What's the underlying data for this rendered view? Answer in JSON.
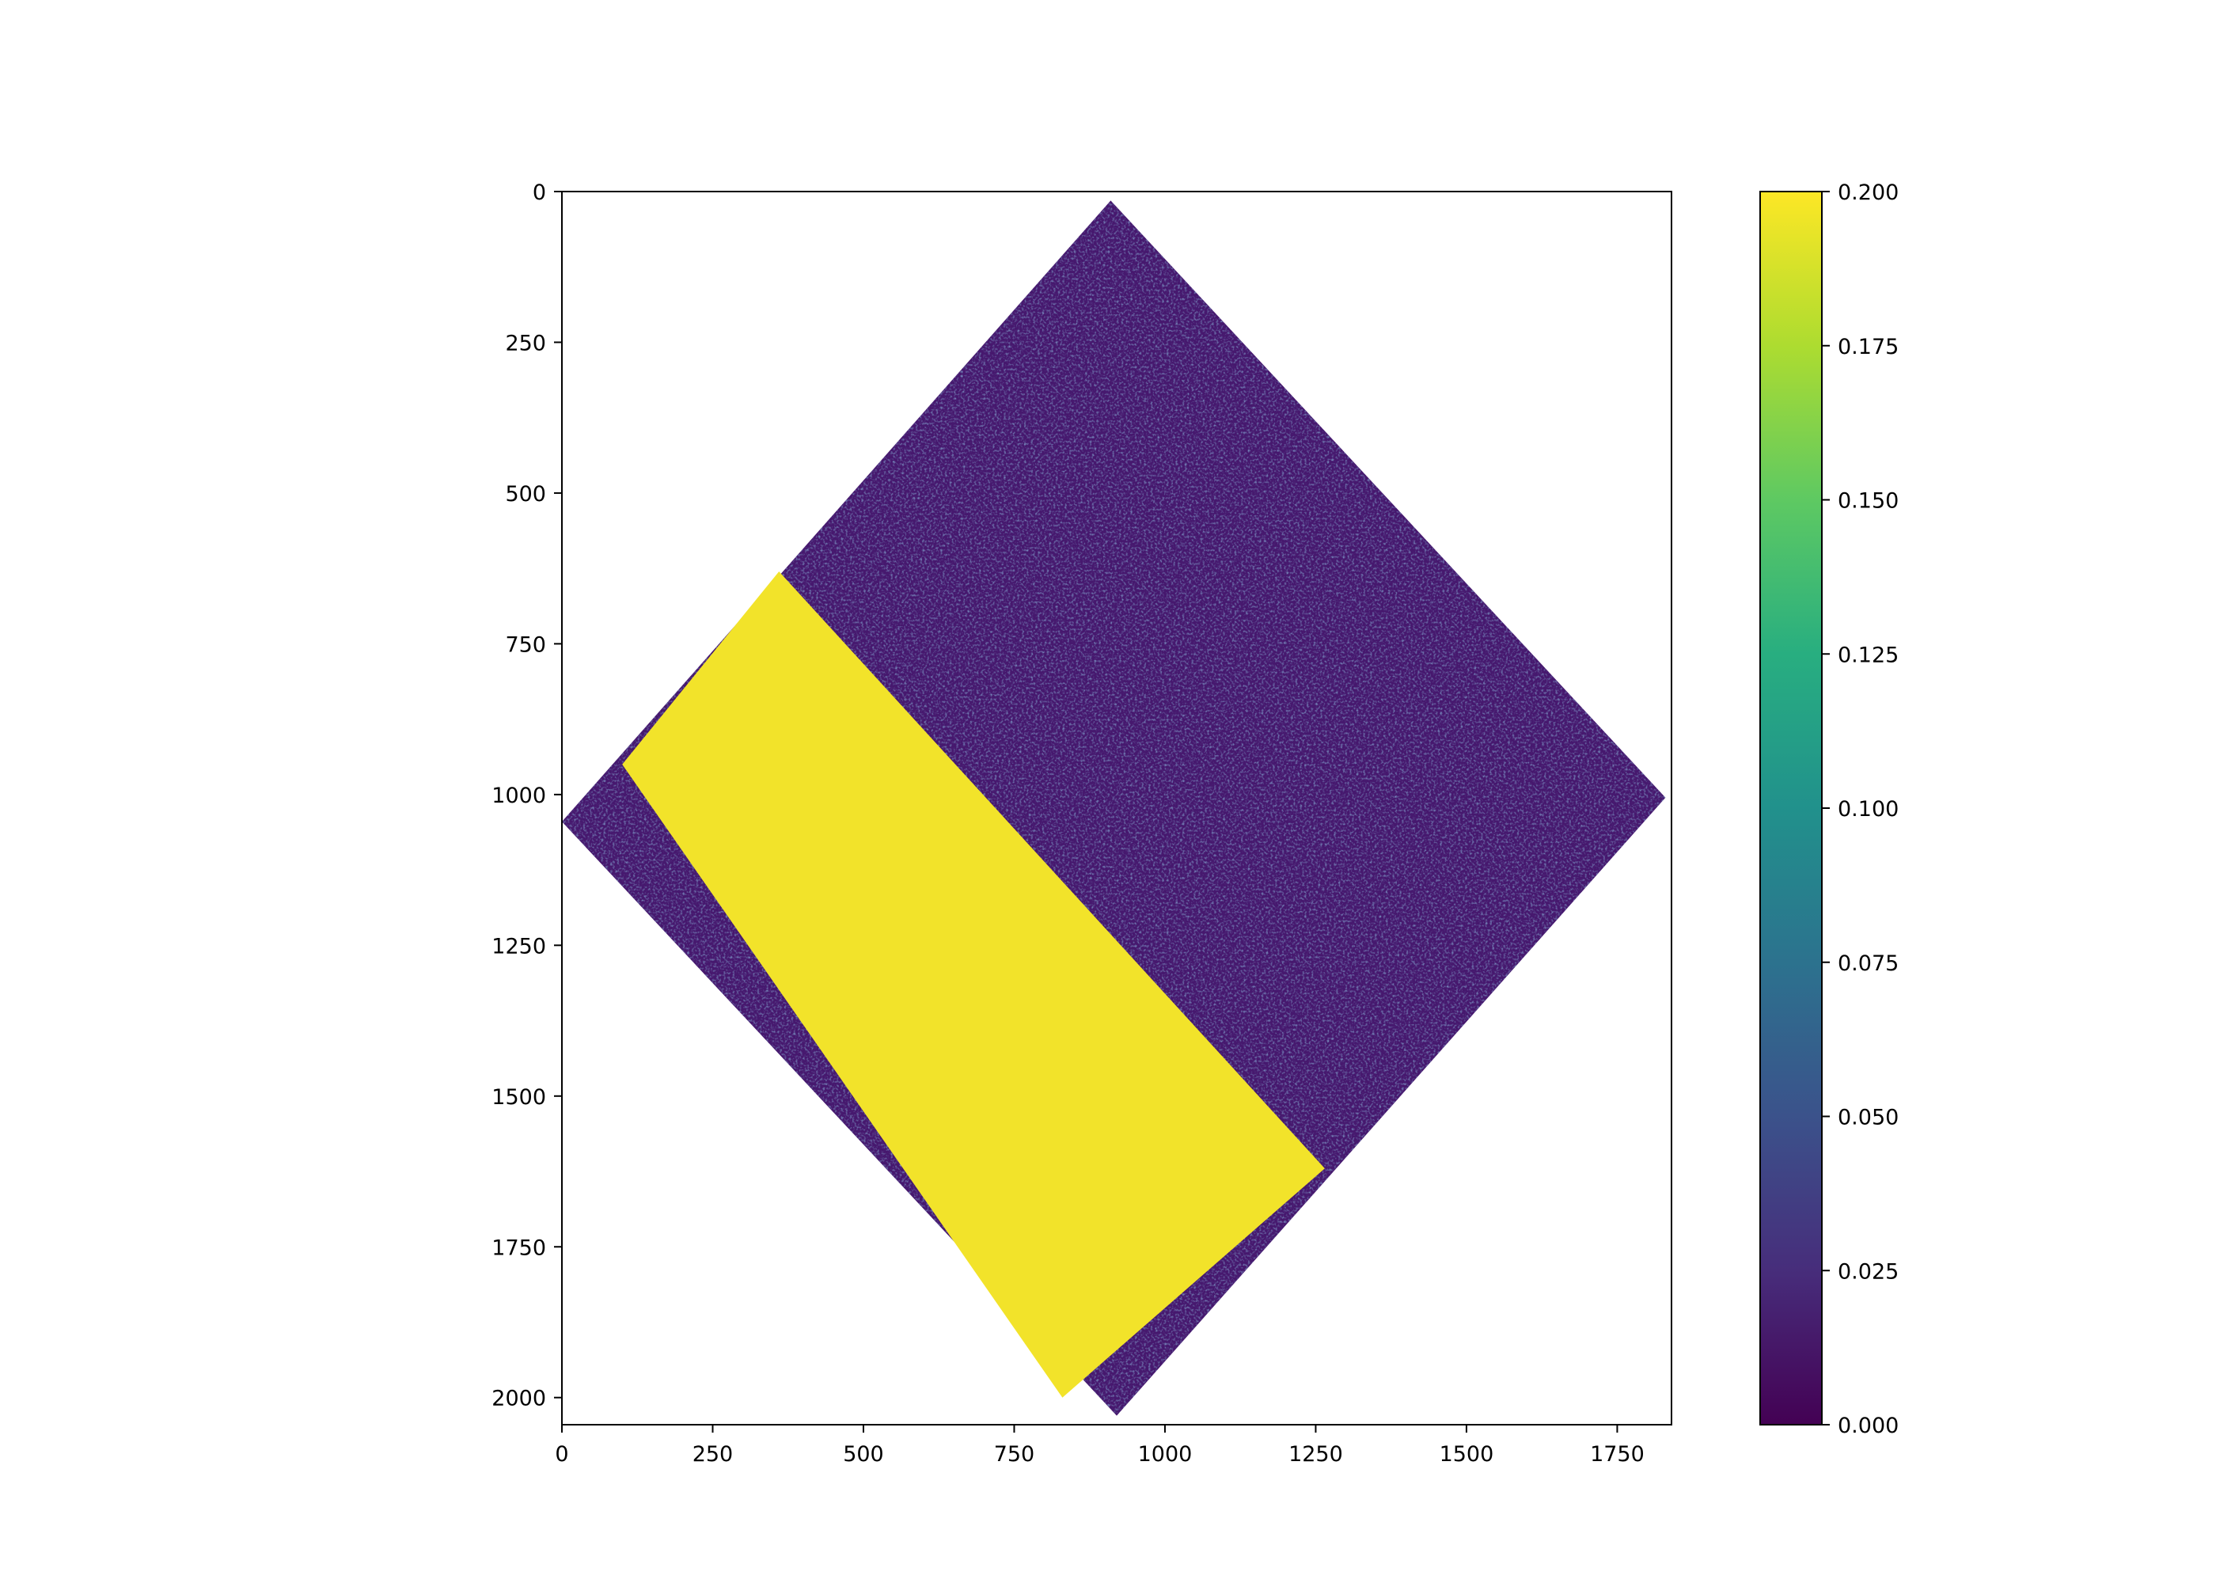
{
  "chart_data": {
    "type": "heatmap",
    "title": "",
    "xlabel": "",
    "ylabel": "",
    "colormap": "viridis",
    "xlim": [
      0,
      1840
    ],
    "ylim": [
      2045,
      0
    ],
    "x_ticks": [
      "0",
      "250",
      "500",
      "750",
      "1000",
      "1250",
      "1500",
      "1750"
    ],
    "y_ticks": [
      "0",
      "250",
      "500",
      "750",
      "1000",
      "1250",
      "1500",
      "1750",
      "2000"
    ],
    "colorbar": {
      "min": 0.0,
      "max": 0.2,
      "ticks": [
        "0.000",
        "0.025",
        "0.050",
        "0.075",
        "0.100",
        "0.125",
        "0.150",
        "0.175",
        "0.200"
      ]
    },
    "valid_region_corners": [
      [
        910,
        15
      ],
      [
        1830,
        1005
      ],
      [
        920,
        2030
      ],
      [
        0,
        1045
      ]
    ],
    "high_value_band_corners": [
      [
        360,
        630
      ],
      [
        1265,
        1620
      ],
      [
        830,
        2000
      ],
      [
        100,
        950
      ]
    ],
    "background_value": 0.01,
    "band_value": 0.2
  }
}
